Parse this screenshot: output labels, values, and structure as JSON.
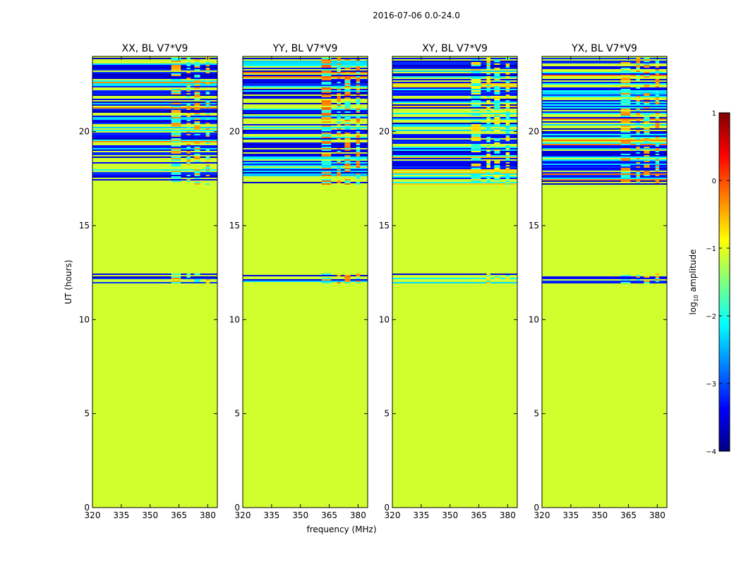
{
  "figure": {
    "suptitle": "2016-07-06 0.0-24.0",
    "xlabel": "frequency (MHz)",
    "ylabel": "UT (hours)"
  },
  "chart_data": {
    "type": "heatmap",
    "x_ticks": [
      "320",
      "335",
      "350",
      "365",
      "380"
    ],
    "x_tick_values": [
      320,
      335,
      350,
      365,
      380
    ],
    "xlim": [
      320,
      385
    ],
    "y_ticks": [
      "0",
      "5",
      "10",
      "15",
      "20"
    ],
    "y_tick_values": [
      0,
      5,
      10,
      15,
      20
    ],
    "ylim": [
      0,
      24
    ],
    "background_log10_amplitude": -1.1,
    "panels": [
      {
        "title": "XX, BL V7*V9",
        "rfi_level": 0
      },
      {
        "title": "YY, BL V7*V9",
        "rfi_level": 0.2
      },
      {
        "title": "XY, BL V7*V9",
        "rfi_level": -0.3
      },
      {
        "title": "YX, BL V7*V9",
        "rfi_level": 0.1
      }
    ],
    "flagged_band_mhz": [
      361,
      381
    ],
    "flagged_sub_bands_mhz": [
      [
        361,
        366
      ],
      [
        369,
        371
      ],
      [
        373,
        376
      ],
      [
        379,
        381
      ]
    ],
    "noisy_time_ranges_hours": [
      [
        17.2,
        24.0
      ],
      [
        12.0,
        12.5
      ]
    ],
    "colorbar": {
      "label_main": "log",
      "label_sub": "10",
      "label_rest": " amplitude",
      "range": [
        -4,
        1
      ],
      "ticks": [
        "1",
        "0",
        "−1",
        "−2",
        "−3",
        "−4"
      ],
      "tick_values": [
        1,
        0,
        -1,
        -2,
        -3,
        -4
      ],
      "colormap": "jet",
      "colors": [
        "#00007f",
        "#0000ff",
        "#007fff",
        "#00ffff",
        "#7fff7f",
        "#ffff00",
        "#ff7f00",
        "#ff0000",
        "#7f0000"
      ]
    }
  }
}
